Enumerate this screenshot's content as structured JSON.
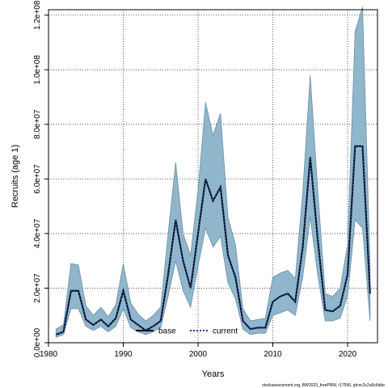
{
  "chart_data": {
    "type": "line",
    "xlabel": "Years",
    "ylabel": "Recruits (age 1)",
    "xlim": [
      1980,
      2024
    ],
    "ylim": [
      0,
      122000000
    ],
    "x_ticks": [
      1980,
      1990,
      2000,
      2010,
      2020
    ],
    "y_ticks": [
      0,
      20000000,
      40000000,
      60000000,
      80000000,
      100000000,
      120000000
    ],
    "y_tick_labels": [
      "0.0e+00",
      "2.0e+07",
      "4.0e+07",
      "6.0e+07",
      "8.0e+07",
      "1.0e+08",
      "1.2e+08"
    ],
    "grid": true,
    "legend_position": "bottom",
    "x": [
      1981,
      1982,
      1983,
      1984,
      1985,
      1986,
      1987,
      1988,
      1989,
      1990,
      1991,
      1992,
      1993,
      1994,
      1995,
      1996,
      1997,
      1998,
      1999,
      2000,
      2001,
      2002,
      2003,
      2004,
      2005,
      2006,
      2007,
      2008,
      2009,
      2010,
      2011,
      2012,
      2013,
      2014,
      2015,
      2016,
      2017,
      2018,
      2019,
      2020,
      2021,
      2022,
      2023
    ],
    "series": [
      {
        "name": "base",
        "color": "#000000",
        "style": "solid",
        "values": [
          3000000,
          4000000,
          19000000,
          19000000,
          8500000,
          6500000,
          8500000,
          6000000,
          9000000,
          19000000,
          8500000,
          6500000,
          4500000,
          6000000,
          8000000,
          25000000,
          45000000,
          30000000,
          20000000,
          40000000,
          60000000,
          52000000,
          57000000,
          32000000,
          24000000,
          8000000,
          5000000,
          5500000,
          5500000,
          15000000,
          17000000,
          18000000,
          15000000,
          35000000,
          68000000,
          38000000,
          12000000,
          11500000,
          13500000,
          25000000,
          72000000,
          72000000,
          18000000
        ]
      },
      {
        "name": "current",
        "color": "#1f3f8a",
        "style": "dotted",
        "values": [
          3000000,
          4000000,
          19000000,
          19000000,
          8500000,
          6500000,
          8500000,
          6000000,
          9000000,
          19000000,
          8500000,
          6500000,
          4500000,
          6000000,
          8000000,
          25000000,
          45000000,
          30000000,
          20000000,
          40000000,
          60000000,
          52000000,
          57000000,
          32000000,
          24000000,
          8000000,
          5000000,
          5500000,
          5500000,
          15000000,
          17000000,
          18000000,
          15000000,
          35000000,
          68000000,
          38000000,
          12000000,
          11500000,
          13500000,
          25000000,
          72000000,
          72000000,
          18000000
        ]
      }
    ],
    "band": {
      "fill": "#8fb6cb",
      "stroke": "#6e8fa3",
      "upper": [
        5000000,
        6500000,
        29000000,
        28500000,
        13500000,
        10000000,
        13000000,
        9500000,
        14000000,
        29000000,
        14500000,
        10500000,
        8000000,
        10000000,
        13000000,
        40000000,
        66000000,
        40000000,
        32000000,
        56000000,
        88000000,
        76000000,
        84000000,
        46000000,
        36000000,
        12500000,
        8000000,
        8500000,
        9000000,
        24000000,
        25500000,
        26500000,
        23500000,
        55000000,
        98000000,
        56000000,
        18000000,
        17000000,
        20000000,
        36000000,
        114000000,
        123000000,
        29000000
      ],
      "lower": [
        2000000,
        3000000,
        12500000,
        12500000,
        6000000,
        4500000,
        6000000,
        4000000,
        6000000,
        12500000,
        5500000,
        4000000,
        3000000,
        4000000,
        5500000,
        17000000,
        30000000,
        19000000,
        13000000,
        28000000,
        42000000,
        35000000,
        39000000,
        22000000,
        16000000,
        5000000,
        3000000,
        3500000,
        3500000,
        10000000,
        11000000,
        12000000,
        10000000,
        24000000,
        46000000,
        25000000,
        8000000,
        8000000,
        9000000,
        17000000,
        45000000,
        42000000,
        8000000
      ]
    }
  },
  "footer": {
    "text": "stockassessment.org, BW2023_freePRW, r17556, git:ec2c2a0c6dde"
  }
}
